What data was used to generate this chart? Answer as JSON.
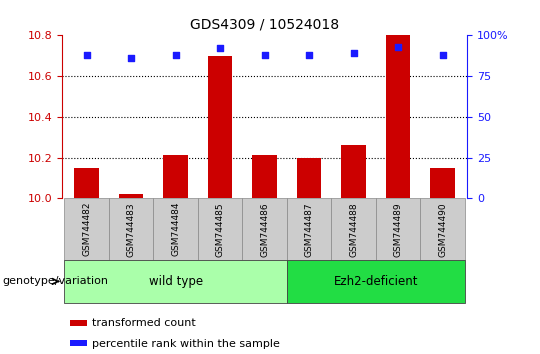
{
  "title": "GDS4309 / 10524018",
  "samples": [
    "GSM744482",
    "GSM744483",
    "GSM744484",
    "GSM744485",
    "GSM744486",
    "GSM744487",
    "GSM744488",
    "GSM744489",
    "GSM744490"
  ],
  "transformed_counts": [
    10.15,
    10.02,
    10.21,
    10.7,
    10.21,
    10.2,
    10.26,
    10.8,
    10.15
  ],
  "percentile_ranks": [
    88,
    86,
    88,
    92,
    88,
    88,
    89,
    93,
    88
  ],
  "ylim_left": [
    10.0,
    10.8
  ],
  "ylim_right": [
    0,
    100
  ],
  "yticks_left": [
    10.0,
    10.2,
    10.4,
    10.6,
    10.8
  ],
  "yticks_right": [
    0,
    25,
    50,
    75,
    100
  ],
  "yticklabels_right": [
    "0",
    "25",
    "50",
    "75",
    "100%"
  ],
  "bar_color": "#cc0000",
  "dot_color": "#1a1aff",
  "grid_color": "#000000",
  "groups": [
    {
      "label": "wild type",
      "start": 0,
      "end": 5,
      "color": "#aaffaa"
    },
    {
      "label": "Ezh2-deficient",
      "start": 5,
      "end": 9,
      "color": "#22dd44"
    }
  ],
  "group_label": "genotype/variation",
  "legend_bar_label": "transformed count",
  "legend_dot_label": "percentile rank within the sample",
  "tick_color_left": "#cc0000",
  "tick_color_right": "#1a1aff",
  "xticklabel_bg": "#cccccc"
}
